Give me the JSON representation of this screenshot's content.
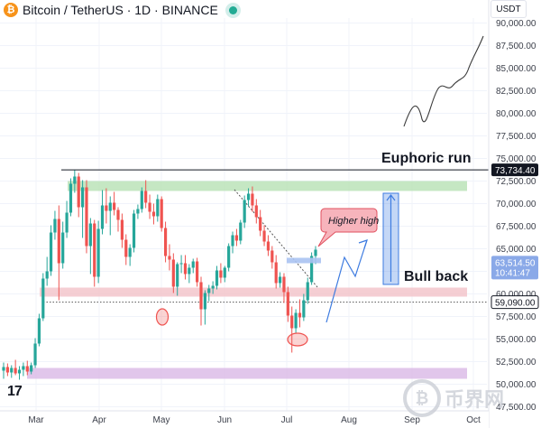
{
  "header": {
    "symbol": "Bitcoin / TetherUS",
    "interval": "1D",
    "exchange": "BINANCE",
    "separator": "·",
    "coin_glyph": "₿",
    "live_color": "#22ab94"
  },
  "currency_button": "USDT",
  "tv_logo": "17",
  "watermark": {
    "glyph": "₿",
    "text": "币界网"
  },
  "chart_data": {
    "type": "candlestick",
    "x_ticks": [
      "Mar",
      "Apr",
      "May",
      "Jun",
      "Jul",
      "Aug",
      "Sep",
      "Oct"
    ],
    "y_ticks": [
      "47,500.00",
      "50,000.00",
      "52,500.00",
      "55,000.00",
      "57,500.00",
      "60,000.00",
      "62,500.00",
      "65,000.00",
      "67,500.00",
      "70,000.00",
      "72,500.00",
      "75,000.00",
      "77,500.00",
      "80,000.00",
      "82,500.00",
      "85,000.00",
      "87,500.00",
      "90,000.00"
    ],
    "ylim": [
      46500,
      91500
    ],
    "price_labels": [
      {
        "value": 73734.4,
        "text": "73,734.40",
        "style": "dark"
      },
      {
        "value": 63514.5,
        "text": "63,514.50",
        "sub": "10:41:47",
        "style": "blue"
      },
      {
        "value": 59090.0,
        "text": "59,090.00",
        "style": "outline"
      }
    ],
    "zones": [
      {
        "name": "resistance",
        "from": 71400,
        "to": 72500,
        "color": "#b7e1b4"
      },
      {
        "name": "support",
        "from": 59700,
        "to": 60700,
        "color": "#f2c2c8"
      },
      {
        "name": "base",
        "from": 50600,
        "to": 51800,
        "color": "#d9b8e6"
      }
    ],
    "candles": [
      {
        "o": 51500,
        "h": 52400,
        "l": 50600,
        "c": 51900
      },
      {
        "o": 51900,
        "h": 52300,
        "l": 50900,
        "c": 51300
      },
      {
        "o": 51300,
        "h": 52100,
        "l": 50700,
        "c": 51800
      },
      {
        "o": 51800,
        "h": 52700,
        "l": 51000,
        "c": 51200
      },
      {
        "o": 51200,
        "h": 52000,
        "l": 50500,
        "c": 51600
      },
      {
        "o": 51600,
        "h": 52400,
        "l": 50900,
        "c": 52000
      },
      {
        "o": 52000,
        "h": 52600,
        "l": 51000,
        "c": 51400
      },
      {
        "o": 51400,
        "h": 52400,
        "l": 51100,
        "c": 52100
      },
      {
        "o": 52100,
        "h": 55100,
        "l": 51800,
        "c": 54500
      },
      {
        "o": 54500,
        "h": 57800,
        "l": 54200,
        "c": 57300
      },
      {
        "o": 57300,
        "h": 62300,
        "l": 57000,
        "c": 61700
      },
      {
        "o": 61700,
        "h": 64100,
        "l": 60900,
        "c": 62500
      },
      {
        "o": 62500,
        "h": 67600,
        "l": 62000,
        "c": 66800
      },
      {
        "o": 66800,
        "h": 69200,
        "l": 66000,
        "c": 68300
      },
      {
        "o": 68300,
        "h": 69800,
        "l": 59300,
        "c": 63400
      },
      {
        "o": 63400,
        "h": 68000,
        "l": 62800,
        "c": 66800
      },
      {
        "o": 66800,
        "h": 70300,
        "l": 66200,
        "c": 69000
      },
      {
        "o": 69000,
        "h": 72800,
        "l": 68600,
        "c": 72200
      },
      {
        "o": 72200,
        "h": 73700,
        "l": 71200,
        "c": 73000
      },
      {
        "o": 73000,
        "h": 73400,
        "l": 68500,
        "c": 69600
      },
      {
        "o": 69600,
        "h": 72600,
        "l": 66200,
        "c": 71800
      },
      {
        "o": 71800,
        "h": 72600,
        "l": 64500,
        "c": 65300
      },
      {
        "o": 65300,
        "h": 68400,
        "l": 62200,
        "c": 67800
      },
      {
        "o": 67800,
        "h": 68200,
        "l": 60800,
        "c": 61900
      },
      {
        "o": 61900,
        "h": 68100,
        "l": 61200,
        "c": 67200
      },
      {
        "o": 67200,
        "h": 71500,
        "l": 66600,
        "c": 69800
      },
      {
        "o": 69800,
        "h": 71700,
        "l": 67800,
        "c": 69200
      },
      {
        "o": 69200,
        "h": 70800,
        "l": 66500,
        "c": 70100
      },
      {
        "o": 70100,
        "h": 71300,
        "l": 68700,
        "c": 69300
      },
      {
        "o": 69300,
        "h": 69600,
        "l": 66900,
        "c": 68200
      },
      {
        "o": 68200,
        "h": 68900,
        "l": 65100,
        "c": 66000
      },
      {
        "o": 66000,
        "h": 66600,
        "l": 63200,
        "c": 64100
      },
      {
        "o": 64100,
        "h": 65500,
        "l": 63100,
        "c": 65100
      },
      {
        "o": 65100,
        "h": 69300,
        "l": 64600,
        "c": 68900
      },
      {
        "o": 68900,
        "h": 69900,
        "l": 68300,
        "c": 69400
      },
      {
        "o": 69400,
        "h": 71800,
        "l": 69000,
        "c": 71400
      },
      {
        "o": 71400,
        "h": 72600,
        "l": 69500,
        "c": 70100
      },
      {
        "o": 70100,
        "h": 71000,
        "l": 68300,
        "c": 69100
      },
      {
        "o": 69100,
        "h": 70000,
        "l": 67700,
        "c": 68600
      },
      {
        "o": 68600,
        "h": 71000,
        "l": 68000,
        "c": 70500
      },
      {
        "o": 70500,
        "h": 70800,
        "l": 66900,
        "c": 67300
      },
      {
        "o": 67300,
        "h": 68000,
        "l": 63500,
        "c": 64200
      },
      {
        "o": 64200,
        "h": 65500,
        "l": 62600,
        "c": 63800
      },
      {
        "o": 63800,
        "h": 64500,
        "l": 60100,
        "c": 60800
      },
      {
        "o": 60800,
        "h": 63500,
        "l": 59800,
        "c": 63300
      },
      {
        "o": 63300,
        "h": 64300,
        "l": 62300,
        "c": 63400
      },
      {
        "o": 63400,
        "h": 64300,
        "l": 61600,
        "c": 62200
      },
      {
        "o": 62200,
        "h": 63300,
        "l": 61200,
        "c": 62900
      },
      {
        "o": 62900,
        "h": 63900,
        "l": 62300,
        "c": 63600
      },
      {
        "o": 63600,
        "h": 64000,
        "l": 60800,
        "c": 61300
      },
      {
        "o": 61300,
        "h": 61900,
        "l": 56500,
        "c": 58300
      },
      {
        "o": 58300,
        "h": 60400,
        "l": 56600,
        "c": 60100
      },
      {
        "o": 60100,
        "h": 61000,
        "l": 59200,
        "c": 60600
      },
      {
        "o": 60600,
        "h": 61400,
        "l": 60000,
        "c": 60900
      },
      {
        "o": 60900,
        "h": 63100,
        "l": 60500,
        "c": 62600
      },
      {
        "o": 62600,
        "h": 63400,
        "l": 61200,
        "c": 61800
      },
      {
        "o": 61800,
        "h": 63100,
        "l": 61300,
        "c": 62900
      },
      {
        "o": 62900,
        "h": 65600,
        "l": 62500,
        "c": 65300
      },
      {
        "o": 65300,
        "h": 66900,
        "l": 64500,
        "c": 66500
      },
      {
        "o": 66500,
        "h": 67200,
        "l": 65300,
        "c": 65900
      },
      {
        "o": 65900,
        "h": 68200,
        "l": 65500,
        "c": 67900
      },
      {
        "o": 67900,
        "h": 70900,
        "l": 67300,
        "c": 70400
      },
      {
        "o": 70400,
        "h": 71700,
        "l": 69700,
        "c": 71100
      },
      {
        "o": 71100,
        "h": 71900,
        "l": 69100,
        "c": 69800
      },
      {
        "o": 69800,
        "h": 70500,
        "l": 67800,
        "c": 68500
      },
      {
        "o": 68500,
        "h": 69300,
        "l": 66400,
        "c": 67000
      },
      {
        "o": 67000,
        "h": 67600,
        "l": 65300,
        "c": 65800
      },
      {
        "o": 65800,
        "h": 66500,
        "l": 64200,
        "c": 64800
      },
      {
        "o": 64800,
        "h": 65300,
        "l": 62800,
        "c": 63500
      },
      {
        "o": 63500,
        "h": 64300,
        "l": 60600,
        "c": 61200
      },
      {
        "o": 61200,
        "h": 62400,
        "l": 60700,
        "c": 61900
      },
      {
        "o": 61900,
        "h": 62300,
        "l": 59000,
        "c": 60200
      },
      {
        "o": 60200,
        "h": 60800,
        "l": 56900,
        "c": 57600
      },
      {
        "o": 57600,
        "h": 58600,
        "l": 53500,
        "c": 56200
      },
      {
        "o": 56200,
        "h": 58300,
        "l": 55600,
        "c": 57900
      },
      {
        "o": 57900,
        "h": 59400,
        "l": 56300,
        "c": 57400
      },
      {
        "o": 57400,
        "h": 60000,
        "l": 57000,
        "c": 59300
      },
      {
        "o": 59300,
        "h": 61800,
        "l": 58900,
        "c": 61300
      },
      {
        "o": 61300,
        "h": 64600,
        "l": 61000,
        "c": 64200
      },
      {
        "o": 64200,
        "h": 65300,
        "l": 63300,
        "c": 64900
      }
    ],
    "annotations": {
      "euphoric": "Euphoric run",
      "higher_high": "Higher high",
      "bull_back": "Bull back"
    },
    "colors": {
      "up": "#26a69a",
      "down": "#ef5350"
    }
  }
}
